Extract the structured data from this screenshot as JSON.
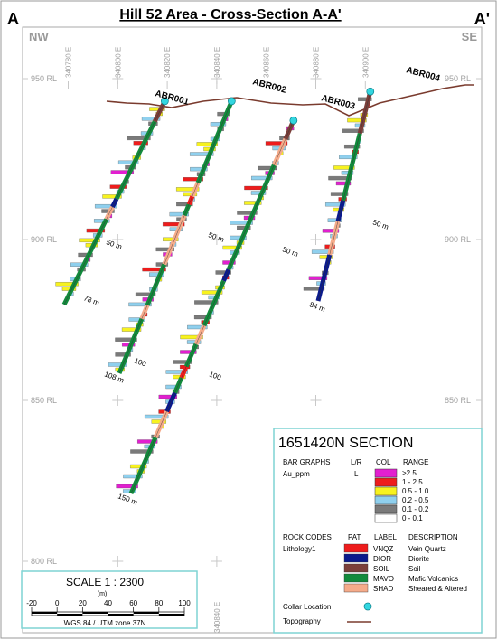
{
  "title": "Hill 52 Area - Cross-Section A-A'",
  "ends": {
    "left_label": "A",
    "right_label": "A'",
    "left_dir": "NW",
    "right_dir": "SE"
  },
  "easting_labels": [
    "340780 E",
    "340800 E",
    "340820 E",
    "340840 E",
    "340860 E",
    "340880 E",
    "340900 E"
  ],
  "easting_values": [
    340780,
    340800,
    340820,
    340840,
    340860,
    340880,
    340900
  ],
  "bottom_easting_label": "340840 E",
  "rl_labels": [
    "950 RL",
    "900 RL",
    "850 RL",
    "800 RL"
  ],
  "rl_values": [
    950,
    900,
    850,
    800
  ],
  "colors": {
    "topography": "#7a3b2e",
    "collar": "#33d6e0",
    "vnqz": "#ee1c1c",
    "dior": "#0a1a8c",
    "soil": "#7b3f3a",
    "mavo": "#128a3c",
    "shad": "#f5ab8a",
    "au_gt_2_5": "#e21fd0",
    "au_1_2_5": "#ee1c1c",
    "au_0_5_1": "#f7f21f",
    "au_0_2_0_5": "#8fd0ee",
    "au_0_1_0_2": "#7a7a7a",
    "au_0_0_1": "#ffffff"
  },
  "holes": [
    {
      "name": "ABR001",
      "collar": [
        340819,
        943
      ],
      "end_depth_label": "78 m",
      "mid_label": "50 m"
    },
    {
      "name": "ABR002",
      "collar": [
        340846,
        943
      ],
      "end_depth_label": "108 m",
      "mid_label": "50 m",
      "extra_label": "100"
    },
    {
      "name": "ABR003",
      "collar": [
        340871,
        937
      ],
      "end_depth_label": "150 m",
      "mid_label": "50 m",
      "extra_label": "100"
    },
    {
      "name": "ABR004",
      "collar": [
        340902,
        946
      ],
      "end_depth_label": "84 m",
      "mid_label": "50 m"
    }
  ],
  "legend": {
    "section_title": "1651420N  SECTION",
    "bar_graphs_header": "BAR GRAPHS",
    "lr_header": "L/R",
    "col_header": "COL",
    "range_header": "RANGE",
    "variable": "Au_ppm",
    "variable_side": "L",
    "ranges": [
      ">2.5",
      "1 - 2.5",
      "0.5 - 1.0",
      "0.2 - 0.5",
      "0.1 - 0.2",
      "0 - 0.1"
    ],
    "rock_codes_header": "ROCK CODES",
    "pat_header": "PAT",
    "label_header": "LABEL",
    "description_header": "DESCRIPTION",
    "lithology_field": "Lithology1",
    "rocks": [
      {
        "code": "VNQZ",
        "description": "Vein Quartz"
      },
      {
        "code": "DIOR",
        "description": "Diorite"
      },
      {
        "code": "SOIL",
        "description": "Soil"
      },
      {
        "code": "MAVO",
        "description": "Mafic Volcanics"
      },
      {
        "code": "SHAD",
        "description": "Sheared & Altered"
      }
    ],
    "collar_location": "Collar Location",
    "topography": "Topography"
  },
  "scale": {
    "title": "SCALE  1 : 2300",
    "unit": "(m)",
    "ticks": [
      "-20",
      "0",
      "20",
      "40",
      "60",
      "80",
      "100"
    ],
    "datum": "WGS 84 / UTM zone 37N"
  }
}
